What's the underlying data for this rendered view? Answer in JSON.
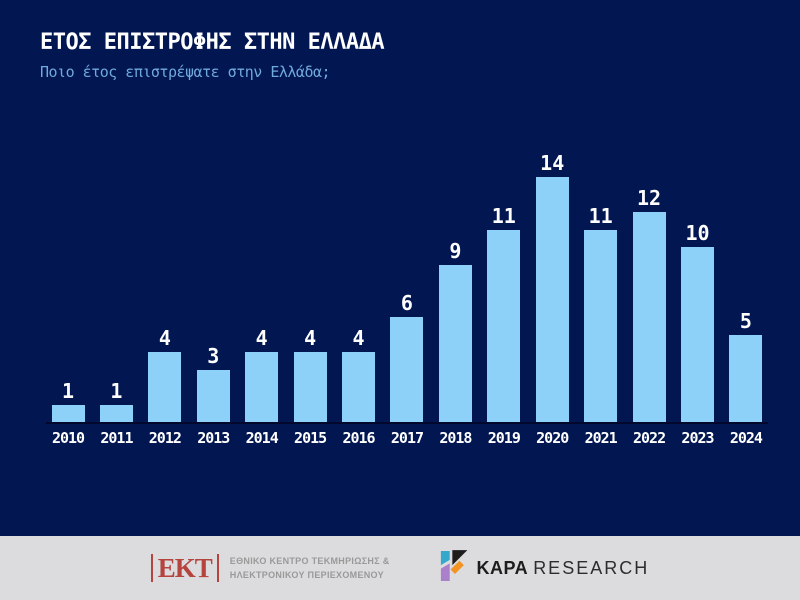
{
  "header": {
    "title": "ΕΤΟΣ ΕΠΙΣΤΡΟΦΗΣ ΣΤΗΝ ΕΛΛΑΔΑ",
    "subtitle": "Ποιο έτος επιστρέψατε στην Ελλάδα;"
  },
  "chart_data": {
    "type": "bar",
    "title": "ΕΤΟΣ ΕΠΙΣΤΡΟΦΗΣ ΣΤΗΝ ΕΛΛΑΔΑ",
    "subtitle": "Ποιο έτος επιστρέψατε στην Ελλάδα;",
    "categories": [
      "2010",
      "2011",
      "2012",
      "2013",
      "2014",
      "2015",
      "2016",
      "2017",
      "2018",
      "2019",
      "2020",
      "2021",
      "2022",
      "2023",
      "2024"
    ],
    "values": [
      1,
      1,
      4,
      3,
      4,
      4,
      4,
      6,
      9,
      11,
      14,
      11,
      12,
      10,
      5
    ],
    "xlabel": "",
    "ylabel": "",
    "ylim": [
      0,
      15
    ],
    "grid": false,
    "legend": false,
    "value_labels": "above-bars",
    "bar_color": "#8ed1f8",
    "value_label_color": "#ffffff",
    "tick_label_color": "#ffffff"
  },
  "colors": {
    "background": "#021652",
    "bar": "#8ed1f8",
    "title": "#ffffff",
    "subtitle": "#70a9dc",
    "axis_line": "#01082b",
    "footer_background": "#dcdcde",
    "ekt_red": "#b5433e",
    "ekt_gray": "#999999",
    "kapa_teal": "#35a8cb",
    "kapa_orange": "#f39322",
    "kapa_purple": "#ab80ca",
    "kapa_black": "#1d1d1b"
  },
  "footer": {
    "ekt": {
      "acronym": "ΕΚΤ",
      "name_line1": "ΕΘΝΙΚΟ ΚΕΝΤΡΟ ΤΕΚΜΗΡΙΩΣΗΣ &",
      "name_line2": "ΗΛΕΚΤΡΟΝΙΚΟΥ ΠΕΡΙΕΧΟΜΕΝΟΥ"
    },
    "kapa": {
      "name_bold": "KAPA",
      "name_regular": "RESEARCH"
    }
  }
}
